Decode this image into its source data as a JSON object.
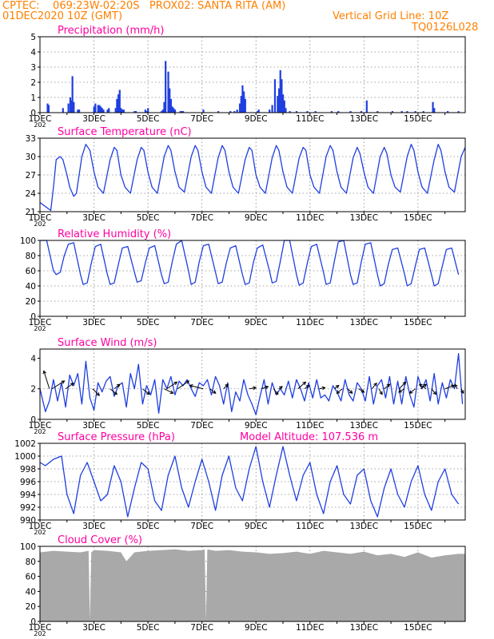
{
  "header": {
    "line1": "CPTEC:    069:23W-02:20S   PROX02: SANTA RITA (AM)",
    "line2_left": "01DEC2020 10Z (GMT)",
    "line2_right": "Vertical Grid Line: 10Z",
    "line3_right": "TQ0126L028",
    "model_altitude": "Model Altitude: 107.536 m"
  },
  "colors": {
    "header": "#ff8000",
    "title": "#ff00a0",
    "series": "#1f3fe0",
    "cloud": "#a9a9a9",
    "arrow": "#000000"
  },
  "x_tick_labels": [
    "1DEC",
    "3DEC",
    "5DEC",
    "7DEC",
    "9DEC",
    "11DEC",
    "13DEC",
    "15DEC"
  ],
  "x_tick_day_index": [
    0,
    2,
    4,
    6,
    8,
    10,
    12,
    14
  ],
  "year_stub": "202",
  "chart_data": [
    {
      "id": "precip",
      "type": "bar",
      "title": "Precipitation (mm/h)",
      "ylim": [
        0,
        5
      ],
      "yticks": [
        0,
        1,
        2,
        3,
        4,
        5
      ],
      "grid": true,
      "x_unit": "days since 01DEC2020 10Z",
      "x": [
        0.28,
        0.32,
        0.85,
        1.05,
        1.12,
        1.15,
        1.2,
        1.25,
        1.4,
        1.45,
        2.0,
        2.05,
        2.15,
        2.2,
        2.25,
        2.3,
        2.35,
        2.5,
        2.55,
        2.8,
        2.85,
        2.9,
        2.95,
        3.0,
        3.05,
        3.1,
        3.5,
        3.55,
        3.9,
        3.95,
        4.0,
        4.5,
        4.55,
        4.6,
        4.65,
        4.75,
        4.8,
        4.85,
        4.9,
        4.95,
        5.0,
        5.2,
        5.25,
        5.3,
        6.05,
        6.6,
        7.05,
        7.2,
        7.3,
        7.4,
        7.45,
        7.5,
        7.55,
        7.6,
        8.05,
        8.1,
        8.5,
        8.6,
        8.7,
        8.8,
        8.85,
        8.9,
        8.95,
        9.0,
        9.05,
        9.1,
        9.25,
        9.5,
        9.9,
        10.2,
        10.8,
        11.05,
        11.5,
        11.9,
        12.1,
        12.5,
        13.05,
        13.4,
        13.6,
        13.9,
        14.2,
        14.55,
        14.6,
        15.1,
        15.5
      ],
      "values": [
        0.6,
        0.5,
        0.3,
        0.6,
        1.0,
        0.8,
        2.4,
        0.7,
        0.2,
        0.2,
        0.4,
        0.6,
        0.5,
        0.5,
        0.4,
        0.3,
        0.2,
        0.2,
        0.3,
        0.3,
        0.9,
        1.2,
        1.5,
        0.3,
        0.2,
        0.2,
        0.1,
        0.1,
        0.2,
        0.1,
        0.3,
        0.1,
        0.2,
        0.7,
        3.4,
        2.7,
        1.6,
        0.9,
        0.4,
        0.3,
        0.2,
        0.1,
        0.1,
        0.1,
        0.2,
        0.1,
        0.1,
        0.1,
        0.2,
        0.6,
        1.1,
        1.8,
        1.4,
        0.9,
        0.1,
        0.2,
        0.2,
        0.5,
        2.2,
        1.1,
        1.6,
        2.8,
        2.2,
        1.2,
        0.8,
        0.3,
        0.1,
        0.1,
        0.1,
        0.1,
        0.1,
        0.1,
        0.1,
        0.1,
        0.8,
        0.1,
        0.1,
        0.1,
        0.1,
        0.1,
        0.1,
        0.7,
        0.3,
        0.1,
        0.1
      ]
    },
    {
      "id": "temp",
      "type": "line",
      "title": "Surface Temperature (nC)",
      "ylim": [
        21,
        33
      ],
      "yticks": [
        21,
        24,
        27,
        30,
        33
      ],
      "grid": true,
      "x_unit": "days since 01DEC2020 10Z",
      "x": [
        0,
        0.15,
        0.4,
        0.5,
        0.6,
        0.75,
        0.85,
        1.0,
        1.1,
        1.25,
        1.35,
        1.55,
        1.7,
        1.85,
        2.0,
        2.15,
        2.35,
        2.6,
        2.75,
        2.85,
        3.0,
        3.15,
        3.35,
        3.6,
        3.75,
        3.85,
        4.0,
        4.15,
        4.35,
        4.6,
        4.75,
        4.85,
        5.0,
        5.15,
        5.35,
        5.6,
        5.75,
        5.85,
        6.0,
        6.15,
        6.35,
        6.6,
        6.75,
        6.85,
        7.0,
        7.15,
        7.35,
        7.6,
        7.75,
        7.85,
        8.0,
        8.15,
        8.35,
        8.6,
        8.75,
        8.85,
        9.0,
        9.15,
        9.35,
        9.6,
        9.75,
        9.85,
        10.0,
        10.15,
        10.35,
        10.6,
        10.75,
        10.85,
        11.0,
        11.15,
        11.35,
        11.6,
        11.75,
        11.85,
        12.0,
        12.15,
        12.35,
        12.6,
        12.75,
        12.85,
        13.0,
        13.15,
        13.35,
        13.6,
        13.75,
        13.85,
        14.0,
        14.15,
        14.35,
        14.6,
        14.75,
        14.85,
        15.0,
        15.15,
        15.35,
        15.6,
        15.75
      ],
      "values": [
        22.5,
        22,
        21.2,
        25,
        29.5,
        30,
        29.5,
        27,
        25,
        23.5,
        24,
        30,
        32,
        31,
        27.5,
        25,
        24,
        29.5,
        31.5,
        31,
        27,
        25,
        24,
        29.5,
        31.5,
        31,
        27.5,
        25,
        24,
        30,
        31.8,
        31,
        27.5,
        25,
        24.2,
        30,
        31.8,
        31,
        27.5,
        25,
        24,
        29.8,
        31.8,
        31,
        27.5,
        25,
        24,
        29.5,
        31.5,
        31,
        27,
        25,
        24,
        29.8,
        31.8,
        31,
        27.5,
        25,
        24,
        29.8,
        31.5,
        31,
        27,
        25,
        24,
        30,
        31.8,
        31,
        27.5,
        25,
        24,
        29.8,
        31.5,
        30.5,
        27.5,
        25,
        24,
        30,
        31.5,
        30.5,
        27,
        25,
        24.2,
        30,
        32,
        31,
        27.5,
        25,
        24,
        29.5,
        32,
        31,
        27.5,
        25,
        24.2,
        30,
        31.5
      ]
    },
    {
      "id": "rh",
      "type": "line",
      "title": "Relative Humidity (%)",
      "ylim": [
        0,
        100
      ],
      "yticks": [
        0,
        20,
        40,
        60,
        80,
        100
      ],
      "grid": true,
      "x_unit": "days since 01DEC2020 10Z",
      "x": [
        0,
        0.25,
        0.5,
        0.6,
        0.75,
        0.9,
        1.05,
        1.25,
        1.5,
        1.6,
        1.75,
        1.9,
        2.05,
        2.25,
        2.5,
        2.6,
        2.75,
        2.9,
        3.05,
        3.25,
        3.5,
        3.6,
        3.75,
        3.9,
        4.05,
        4.25,
        4.5,
        4.6,
        4.75,
        4.9,
        5.05,
        5.25,
        5.5,
        5.6,
        5.75,
        5.9,
        6.05,
        6.25,
        6.5,
        6.6,
        6.75,
        6.9,
        7.05,
        7.25,
        7.5,
        7.6,
        7.75,
        7.9,
        8.05,
        8.25,
        8.5,
        8.6,
        8.75,
        8.9,
        9.05,
        9.25,
        9.5,
        9.6,
        9.75,
        9.9,
        10.05,
        10.25,
        10.5,
        10.6,
        10.75,
        10.9,
        11.05,
        11.25,
        11.5,
        11.6,
        11.75,
        11.9,
        12.05,
        12.25,
        12.5,
        12.6,
        12.75,
        12.9,
        13.05,
        13.25,
        13.5,
        13.6,
        13.75,
        13.9,
        14.05,
        14.25,
        14.5,
        14.6,
        14.75,
        14.9,
        15.05,
        15.25,
        15.5
      ],
      "values": [
        100,
        100,
        60,
        55,
        58,
        80,
        95,
        97,
        55,
        42,
        44,
        70,
        92,
        95,
        55,
        42,
        44,
        68,
        90,
        92,
        58,
        45,
        47,
        70,
        90,
        93,
        55,
        43,
        45,
        72,
        95,
        100,
        60,
        42,
        45,
        72,
        93,
        95,
        58,
        43,
        45,
        70,
        90,
        93,
        55,
        42,
        44,
        70,
        90,
        94,
        60,
        44,
        46,
        72,
        100,
        100,
        55,
        41,
        44,
        70,
        92,
        95,
        58,
        42,
        44,
        72,
        98,
        100,
        55,
        42,
        44,
        72,
        95,
        97,
        55,
        40,
        43,
        68,
        88,
        90,
        56,
        40,
        43,
        66,
        88,
        90,
        55,
        40,
        43,
        66,
        88,
        90,
        55
      ]
    },
    {
      "id": "wind",
      "type": "line",
      "title": "Surface Wind (m/s)",
      "ylim": [
        0,
        4.6
      ],
      "yticks": [
        0,
        2,
        4
      ],
      "grid": true,
      "x_unit": "days since 01DEC2020 10Z",
      "x": [
        0,
        0.2,
        0.35,
        0.5,
        0.65,
        0.8,
        0.95,
        1.1,
        1.25,
        1.4,
        1.55,
        1.7,
        1.85,
        2.0,
        2.15,
        2.3,
        2.45,
        2.6,
        2.75,
        2.9,
        3.05,
        3.2,
        3.35,
        3.5,
        3.65,
        3.8,
        3.95,
        4.1,
        4.25,
        4.4,
        4.55,
        4.7,
        4.85,
        5.0,
        5.15,
        5.3,
        5.45,
        5.6,
        5.75,
        5.9,
        6.05,
        6.2,
        6.35,
        6.5,
        6.65,
        6.8,
        6.95,
        7.1,
        7.25,
        7.4,
        7.55,
        7.7,
        7.85,
        8.0,
        8.15,
        8.3,
        8.45,
        8.6,
        8.75,
        8.9,
        9.05,
        9.2,
        9.35,
        9.5,
        9.65,
        9.8,
        9.95,
        10.1,
        10.25,
        10.4,
        10.55,
        10.7,
        10.85,
        11.0,
        11.15,
        11.3,
        11.45,
        11.6,
        11.75,
        11.9,
        12.05,
        12.2,
        12.35,
        12.5,
        12.65,
        12.8,
        12.95,
        13.1,
        13.25,
        13.4,
        13.55,
        13.7,
        13.85,
        14.0,
        14.15,
        14.3,
        14.45,
        14.6,
        14.75,
        14.9,
        15.05,
        15.2,
        15.35,
        15.5,
        15.65
      ],
      "values": [
        2,
        0.5,
        1.2,
        2.6,
        1.2,
        2.4,
        0.8,
        2.9,
        2.2,
        3.0,
        1.0,
        3.8,
        1.4,
        0.6,
        2.4,
        1.8,
        2.5,
        2.8,
        1.5,
        2.2,
        2.4,
        0.8,
        3.0,
        2.0,
        3.6,
        1.0,
        2.2,
        1.6,
        2.6,
        0.4,
        2.6,
        2.0,
        2.8,
        1.6,
        2.5,
        2.2,
        2.6,
        2.0,
        1.5,
        2.4,
        2.2,
        2.6,
        1.6,
        2.8,
        2.2,
        1.0,
        2.4,
        0.5,
        1.8,
        1.2,
        2.6,
        1.6,
        1.0,
        0.3,
        1.5,
        2.6,
        1.0,
        2.4,
        1.6,
        2.0,
        1.6,
        2.5,
        1.4,
        2.6,
        2.0,
        1.2,
        2.4,
        1.4,
        2.6,
        1.4,
        1.6,
        1.2,
        2.2,
        1.8,
        1.2,
        2.6,
        1.6,
        1.2,
        2.4,
        2.0,
        1.2,
        2.8,
        1.0,
        2.2,
        2.6,
        1.4,
        2.8,
        1.0,
        2.5,
        1.0,
        2.8,
        1.6,
        0.8,
        2.8,
        2.0,
        2.6,
        1.2,
        3.0,
        1.0,
        2.4,
        1.4,
        2.6,
        2.0,
        4.3,
        1.0
      ],
      "arrows": [
        {
          "day": 0.35,
          "u": -0.5,
          "v": 1.6
        },
        {
          "day": 0.45,
          "u": 1.1,
          "v": 0.7
        },
        {
          "day": 0.95,
          "u": 0.7,
          "v": 0.5
        },
        {
          "day": 1.95,
          "u": 0.6,
          "v": -0.6
        },
        {
          "day": 2.6,
          "u": 0.6,
          "v": -0.5
        },
        {
          "day": 2.75,
          "u": 0.5,
          "v": 0.4
        },
        {
          "day": 3.8,
          "u": 0.6,
          "v": -0.5
        },
        {
          "day": 4.6,
          "u": 0.8,
          "v": -0.4
        },
        {
          "day": 4.7,
          "u": 0.9,
          "v": 0.6
        },
        {
          "day": 5.1,
          "u": 1.0,
          "v": 0.7
        },
        {
          "day": 6.05,
          "u": -1.2,
          "v": 0.3
        },
        {
          "day": 6.3,
          "u": 0.5,
          "v": -0.4
        },
        {
          "day": 6.8,
          "u": 0.4,
          "v": 0.4
        },
        {
          "day": 7.75,
          "u": 0.6,
          "v": 0.1
        },
        {
          "day": 8.2,
          "u": 0.6,
          "v": 0.2
        },
        {
          "day": 8.65,
          "u": 0.4,
          "v": -0.5
        },
        {
          "day": 8.85,
          "u": 0.3,
          "v": 0.2
        },
        {
          "day": 9.55,
          "u": 0.7,
          "v": 0.6
        },
        {
          "day": 9.8,
          "u": 0.4,
          "v": 0.3
        },
        {
          "day": 10.35,
          "u": 0.5,
          "v": 0.1
        },
        {
          "day": 10.9,
          "u": 0.4,
          "v": 0.3
        },
        {
          "day": 11.2,
          "u": -0.5,
          "v": -0.4
        },
        {
          "day": 11.4,
          "u": 0.4,
          "v": -0.4
        },
        {
          "day": 11.8,
          "u": 0.5,
          "v": -0.3
        },
        {
          "day": 12.3,
          "u": 0.4,
          "v": 0.5
        },
        {
          "day": 12.55,
          "u": 0.3,
          "v": -0.5
        },
        {
          "day": 12.75,
          "u": 0.5,
          "v": 0.4
        },
        {
          "day": 13.3,
          "u": 0.6,
          "v": 0.6
        },
        {
          "day": 13.5,
          "u": -0.5,
          "v": -0.3
        },
        {
          "day": 13.9,
          "u": -0.5,
          "v": -0.4
        },
        {
          "day": 14.1,
          "u": 0.5,
          "v": 0.4
        },
        {
          "day": 14.3,
          "u": -0.6,
          "v": 0.4
        },
        {
          "day": 14.5,
          "u": 0.4,
          "v": -0.5
        },
        {
          "day": 15.0,
          "u": 0.8,
          "v": 0.3
        },
        {
          "day": 15.45,
          "u": -0.2,
          "v": 0.4
        },
        {
          "day": 15.6,
          "u": 0.2,
          "v": -0.4
        }
      ]
    },
    {
      "id": "pres",
      "type": "line",
      "title": "Surface Pressure (hPa)",
      "ylim": [
        990,
        1002
      ],
      "yticks": [
        990,
        992,
        994,
        996,
        998,
        1000,
        1002
      ],
      "grid": true,
      "x_unit": "days since 01DEC2020 10Z",
      "x": [
        0,
        0.2,
        0.5,
        0.8,
        1.0,
        1.25,
        1.5,
        1.75,
        2.0,
        2.25,
        2.5,
        2.75,
        3.0,
        3.25,
        3.5,
        3.75,
        4.0,
        4.25,
        4.5,
        4.75,
        5.0,
        5.25,
        5.5,
        5.75,
        6.0,
        6.25,
        6.5,
        6.75,
        7.0,
        7.25,
        7.5,
        7.75,
        8.0,
        8.25,
        8.5,
        8.75,
        9.0,
        9.25,
        9.5,
        9.75,
        10.0,
        10.25,
        10.5,
        10.75,
        11.0,
        11.25,
        11.5,
        11.75,
        12.0,
        12.25,
        12.5,
        12.75,
        13.0,
        13.25,
        13.5,
        13.75,
        14.0,
        14.25,
        14.5,
        14.75,
        15.0,
        15.25,
        15.5
      ],
      "values": [
        999,
        998.5,
        999.5,
        1000,
        994,
        991,
        997,
        999,
        996,
        993,
        994,
        998.5,
        996,
        990.5,
        995,
        999,
        998,
        993,
        991.5,
        997,
        1000,
        995,
        992,
        996,
        999.5,
        996,
        991.5,
        997,
        1000,
        995,
        993,
        998,
        1001.5,
        996,
        992,
        997,
        1001.5,
        997,
        993,
        997,
        999,
        994,
        991,
        996,
        998.5,
        994,
        992.5,
        997,
        998,
        993,
        990.5,
        995,
        998,
        994,
        992,
        996,
        998.5,
        994,
        991.5,
        996,
        998,
        994,
        992.5
      ]
    },
    {
      "id": "cloud",
      "type": "area",
      "title": "Cloud Cover (%)",
      "ylim": [
        0,
        100
      ],
      "yticks": [
        0,
        20,
        40,
        60,
        80,
        100
      ],
      "grid": true,
      "x_unit": "days since 01DEC2020 10Z",
      "x": [
        0,
        0.5,
        1.0,
        1.5,
        1.8,
        1.85,
        1.9,
        2.0,
        2.5,
        3.0,
        3.2,
        3.5,
        4.0,
        4.5,
        5.0,
        5.5,
        6.0,
        6.1,
        6.15,
        6.2,
        6.5,
        7.0,
        7.5,
        8.0,
        8.5,
        9.0,
        9.5,
        10.0,
        10.5,
        11.0,
        11.5,
        12.0,
        12.5,
        13.0,
        13.5,
        14.0,
        14.5,
        15.0,
        15.5
      ],
      "values": [
        92,
        94,
        93,
        92,
        94,
        2,
        92,
        95,
        94,
        92,
        80,
        92,
        94,
        95,
        96,
        94,
        95,
        96,
        2,
        96,
        94,
        95,
        93,
        92,
        90,
        91,
        93,
        90,
        94,
        92,
        90,
        93,
        88,
        90,
        86,
        92,
        85,
        88,
        90
      ]
    }
  ],
  "extra_title": "Model Altitude: 107.536 m"
}
